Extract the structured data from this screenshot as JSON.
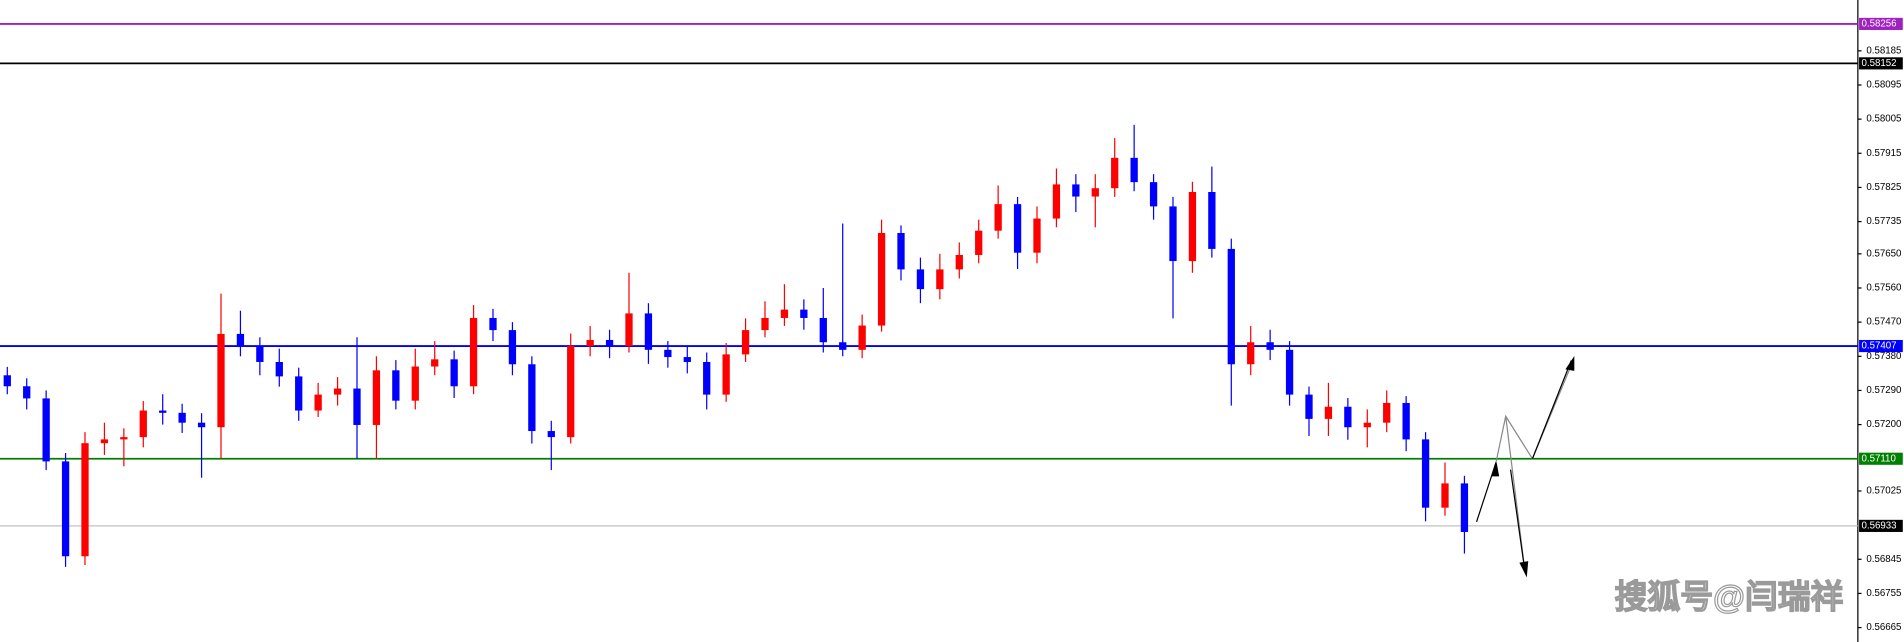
{
  "chart_data": {
    "type": "candlestick",
    "ylim": [
      0.56627,
      0.58319
    ],
    "yticks": [
      0.58185,
      0.58095,
      0.58005,
      0.57915,
      0.57825,
      0.57735,
      {
        "value": 0.5765,
        "label": "0.57650"
      },
      {
        "value": 0.5756,
        "label": "0.57560"
      },
      {
        "value": 0.5747,
        "label": "0.57470"
      },
      {
        "value": 0.5738,
        "label": "0.57380"
      },
      {
        "value": 0.5729,
        "label": "0.57290"
      },
      {
        "value": 0.572,
        "label": "0.57200"
      },
      0.57025,
      0.56845,
      0.56755,
      0.56665
    ],
    "up_color": "#ff0000",
    "down_color": "#0000ff",
    "levels": [
      {
        "value": 0.58256,
        "color": "#a020c0"
      },
      {
        "value": 0.58152,
        "color": "#000000"
      },
      {
        "value": 0.57407,
        "color": "#0000ff"
      },
      {
        "value": {
          "value": 0.5711,
          "label": "0.57110"
        },
        "color": "#008000"
      },
      {
        "value": 0.56933,
        "color": "#000000"
      }
    ],
    "watermark": "搜狐号@闫瑞祥",
    "candles": [
      [
        0.5733,
        0.57352,
        0.5728,
        0.57301
      ],
      [
        0.57301,
        0.57322,
        0.5724,
        0.57269
      ],
      [
        0.57269,
        0.5729,
        0.5708,
        0.57103
      ],
      [
        0.57103,
        0.57125,
        0.56825,
        0.56853
      ],
      [
        0.56853,
        0.5718,
        0.5683,
        0.57151
      ],
      [
        0.57151,
        0.57205,
        0.5712,
        0.57161
      ],
      [
        0.57161,
        0.5719,
        0.5709,
        0.57167
      ],
      [
        0.57167,
        0.57262,
        0.5714,
        0.57237
      ],
      [
        0.57237,
        0.5728,
        0.572,
        0.57231
      ],
      [
        0.57231,
        0.57255,
        0.57178,
        0.57205
      ],
      [
        0.57205,
        0.5723,
        0.5706,
        0.57193
      ],
      [
        0.57193,
        0.57545,
        0.5711,
        0.57439
      ],
      [
        0.57439,
        0.575,
        0.5738,
        0.57407
      ],
      [
        0.57407,
        0.5743,
        0.5733,
        0.57365
      ],
      [
        0.57365,
        0.574,
        0.573,
        0.57327
      ],
      [
        0.57327,
        0.5735,
        0.5721,
        0.57237
      ],
      [
        0.57237,
        0.5731,
        0.5722,
        0.57279
      ],
      [
        0.57279,
        0.57325,
        0.5725,
        0.57295
      ],
      [
        0.57295,
        0.5743,
        0.5711,
        0.57199
      ],
      [
        0.57199,
        0.5738,
        0.5711,
        0.57343
      ],
      [
        0.57343,
        0.5737,
        0.5724,
        0.57263
      ],
      [
        0.57263,
        0.574,
        0.5724,
        0.57353
      ],
      [
        0.57353,
        0.5742,
        0.5733,
        0.57372
      ],
      [
        0.57372,
        0.57395,
        0.5727,
        0.57301
      ],
      [
        0.57301,
        0.57515,
        0.5728,
        0.57481
      ],
      [
        0.57481,
        0.57505,
        0.5742,
        0.57449
      ],
      [
        0.57449,
        0.5747,
        0.5733,
        0.57359
      ],
      [
        0.57359,
        0.5738,
        0.5715,
        0.57183
      ],
      [
        0.57183,
        0.5721,
        0.5708,
        0.57167
      ],
      [
        0.57167,
        0.5744,
        0.5715,
        0.57407
      ],
      [
        0.57407,
        0.5746,
        0.5738,
        0.57423
      ],
      [
        0.57423,
        0.5745,
        0.57375,
        0.57407
      ],
      [
        0.57407,
        0.576,
        0.5739,
        0.57493
      ],
      [
        0.57493,
        0.5752,
        0.5736,
        0.57397
      ],
      [
        0.57397,
        0.5742,
        0.5735,
        0.57378
      ],
      [
        0.57378,
        0.57405,
        0.57335,
        0.57365
      ],
      [
        0.57365,
        0.5739,
        0.5724,
        0.57279
      ],
      [
        0.57279,
        0.57415,
        0.5726,
        0.57385
      ],
      [
        0.57385,
        0.5748,
        0.57365,
        0.57449
      ],
      [
        0.57449,
        0.57525,
        0.5743,
        0.57481
      ],
      [
        0.57481,
        0.5757,
        0.5746,
        0.57503
      ],
      [
        0.57503,
        0.5753,
        0.5745,
        0.57481
      ],
      [
        0.57481,
        0.5756,
        0.5739,
        0.57417
      ],
      [
        0.57417,
        0.5773,
        0.5738,
        0.57397
      ],
      [
        0.57397,
        0.5749,
        0.57375,
        0.57461
      ],
      [
        0.57461,
        0.5774,
        0.57445,
        0.57705
      ],
      [
        0.57705,
        0.57725,
        0.5758,
        0.57609
      ],
      [
        0.57609,
        0.5764,
        0.5752,
        0.57557
      ],
      [
        0.57557,
        0.5765,
        0.5753,
        0.57609
      ],
      [
        0.57609,
        0.5768,
        0.57585,
        0.57647
      ],
      [
        0.57647,
        0.5774,
        0.57625,
        0.57711
      ],
      [
        0.57711,
        0.5783,
        0.5769,
        0.57781
      ],
      [
        0.57781,
        0.578,
        0.5761,
        0.57653
      ],
      [
        0.57653,
        0.57775,
        0.57625,
        0.57743
      ],
      [
        0.57743,
        0.57875,
        0.5772,
        0.57833
      ],
      [
        0.57833,
        0.5786,
        0.5776,
        0.57801
      ],
      [
        0.57801,
        0.5786,
        0.5772,
        0.57823
      ],
      [
        0.57823,
        0.57955,
        0.578,
        0.57903
      ],
      [
        0.57903,
        0.5799,
        0.57815,
        0.57839
      ],
      [
        0.57839,
        0.5786,
        0.5774,
        0.57775
      ],
      [
        0.57775,
        0.578,
        0.5748,
        0.57631
      ],
      [
        0.57631,
        0.5784,
        0.576,
        0.57813
      ],
      [
        0.57813,
        0.5788,
        0.5764,
        0.57663
      ],
      [
        0.57663,
        0.5769,
        0.5725,
        0.57359
      ],
      [
        0.57359,
        0.5746,
        0.5733,
        0.57417
      ],
      [
        0.57417,
        0.5745,
        0.5737,
        0.57397
      ],
      [
        0.57397,
        0.5742,
        0.5725,
        0.57279
      ],
      [
        0.57279,
        0.573,
        0.5717,
        0.57215
      ],
      [
        0.57215,
        0.5731,
        0.5717,
        0.57247
      ],
      [
        0.57247,
        0.5727,
        0.5716,
        0.57193
      ],
      [
        0.57193,
        0.5724,
        0.5714,
        0.57205
      ],
      [
        0.57205,
        0.5729,
        0.5718,
        0.57257
      ],
      [
        0.57257,
        0.57275,
        0.5713,
        0.57161
      ],
      [
        0.57161,
        0.5718,
        0.56945,
        0.56981
      ],
      [
        0.56981,
        0.571,
        0.5696,
        0.57045
      ],
      [
        0.57045,
        0.57065,
        0.5686,
        0.56917
      ]
    ]
  }
}
